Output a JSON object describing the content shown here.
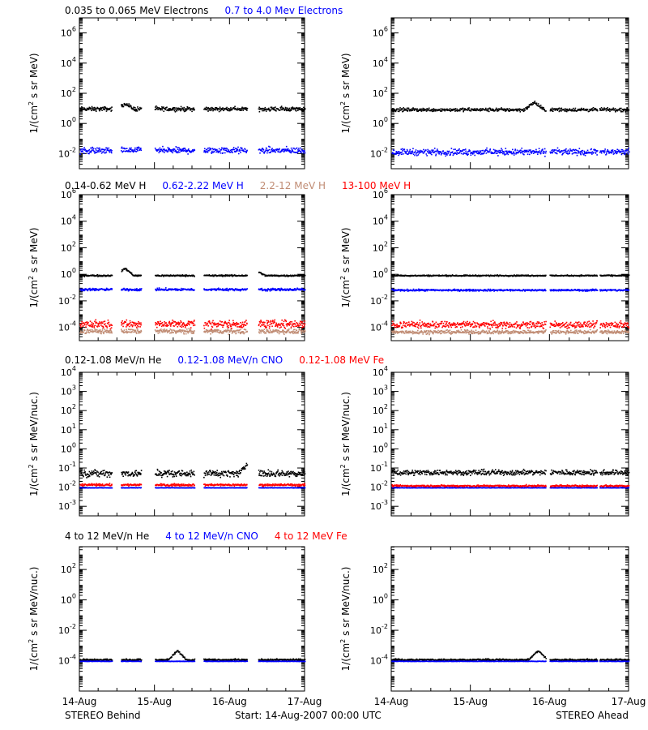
{
  "colors": {
    "black": "#000000",
    "blue": "#0000ff",
    "tan": "#c08c74",
    "red": "#ff0000"
  },
  "footer": {
    "left": "STEREO Behind",
    "center": "Start: 14-Aug-2007 00:00 UTC",
    "right": "STEREO Ahead"
  },
  "x_tick_labels": [
    "14-Aug",
    "15-Aug",
    "16-Aug",
    "17-Aug"
  ],
  "chart_data": [
    {
      "type": "scatter",
      "panel": "electrons-behind",
      "header": [
        "0.035 to 0.065 MeV Electrons",
        "0.7 to 4.0 Mev Electrons"
      ],
      "header_colors": [
        "#000000",
        "#0000ff"
      ],
      "ylabel_base": "1/(cm",
      "ylabel_sup": "2",
      "ylabel_rest": " s sr MeV)",
      "y_scale": "log",
      "ylim_exp": [
        -3,
        7
      ],
      "y_ticks": [
        {
          "base": "10",
          "exp": "-2",
          "e": -2
        },
        {
          "base": "10",
          "exp": "0",
          "e": 0
        },
        {
          "base": "10",
          "exp": "2",
          "e": 2
        },
        {
          "base": "10",
          "exp": "4",
          "e": 4
        },
        {
          "base": "10",
          "exp": "6",
          "e": 6
        }
      ],
      "x_days": [
        0,
        3
      ],
      "gaps": [
        [
          0.43,
          0.55
        ],
        [
          0.82,
          1.0
        ],
        [
          1.53,
          1.65
        ],
        [
          2.23,
          2.38
        ]
      ],
      "series": [
        {
          "color": "#000000",
          "level": 1.0,
          "scatter": 0.12,
          "events": [
            [
              0.6,
              0.35
            ]
          ]
        },
        {
          "color": "#0000ff",
          "level": -1.75,
          "scatter": 0.18,
          "events": []
        }
      ]
    },
    {
      "type": "scatter",
      "panel": "electrons-ahead",
      "ylabel_base": "1/(cm",
      "ylabel_sup": "2",
      "ylabel_rest": " s sr MeV)",
      "y_scale": "log",
      "ylim_exp": [
        -3,
        7
      ],
      "y_ticks": [
        {
          "base": "10",
          "exp": "-2",
          "e": -2
        },
        {
          "base": "10",
          "exp": "0",
          "e": 0
        },
        {
          "base": "10",
          "exp": "2",
          "e": 2
        },
        {
          "base": "10",
          "exp": "4",
          "e": 4
        },
        {
          "base": "10",
          "exp": "6",
          "e": 6
        }
      ],
      "x_days": [
        0,
        3
      ],
      "gaps": [
        [
          1.95,
          2.0
        ],
        [
          2.6,
          2.63
        ]
      ],
      "series": [
        {
          "color": "#000000",
          "level": 0.95,
          "scatter": 0.1,
          "events": [
            [
              1.8,
              0.5
            ]
          ]
        },
        {
          "color": "#0000ff",
          "level": -1.85,
          "scatter": 0.18,
          "events": []
        }
      ]
    },
    {
      "type": "scatter",
      "panel": "protons-behind",
      "header": [
        "0.14-0.62 MeV H",
        "0.62-2.22 MeV H",
        "2.2-12 MeV H",
        "13-100 MeV H"
      ],
      "header_colors": [
        "#000000",
        "#0000ff",
        "#c08c74",
        "#ff0000"
      ],
      "ylabel_base": "1/(cm",
      "ylabel_sup": "2",
      "ylabel_rest": " s sr MeV)",
      "y_scale": "log",
      "ylim_exp": [
        -5,
        6
      ],
      "y_ticks": [
        {
          "base": "10",
          "exp": "-4",
          "e": -4
        },
        {
          "base": "10",
          "exp": "-2",
          "e": -2
        },
        {
          "base": "10",
          "exp": "0",
          "e": 0
        },
        {
          "base": "10",
          "exp": "2",
          "e": 2
        },
        {
          "base": "10",
          "exp": "4",
          "e": 4
        },
        {
          "base": "10",
          "exp": "6",
          "e": 6
        }
      ],
      "x_days": [
        0,
        3
      ],
      "gaps": [
        [
          0.43,
          0.55
        ],
        [
          0.82,
          1.0
        ],
        [
          1.53,
          1.65
        ],
        [
          2.23,
          2.38
        ]
      ],
      "series": [
        {
          "color": "#000000",
          "level": -0.05,
          "scatter": 0.05,
          "events": [
            [
              0.6,
              0.55
            ],
            [
              2.35,
              0.35
            ]
          ]
        },
        {
          "color": "#0000ff",
          "level": -1.1,
          "scatter": 0.08,
          "events": []
        },
        {
          "color": "#c08c74",
          "level": -4.25,
          "scatter": 0.15,
          "events": []
        },
        {
          "color": "#ff0000",
          "level": -3.7,
          "scatter": 0.25,
          "events": []
        }
      ]
    },
    {
      "type": "scatter",
      "panel": "protons-ahead",
      "ylabel_base": "1/(cm",
      "ylabel_sup": "2",
      "ylabel_rest": " s sr MeV)",
      "y_scale": "log",
      "ylim_exp": [
        -5,
        6
      ],
      "y_ticks": [
        {
          "base": "10",
          "exp": "-4",
          "e": -4
        },
        {
          "base": "10",
          "exp": "-2",
          "e": -2
        },
        {
          "base": "10",
          "exp": "0",
          "e": 0
        },
        {
          "base": "10",
          "exp": "2",
          "e": 2
        },
        {
          "base": "10",
          "exp": "4",
          "e": 4
        },
        {
          "base": "10",
          "exp": "6",
          "e": 6
        }
      ],
      "x_days": [
        0,
        3
      ],
      "gaps": [
        [
          1.95,
          2.0
        ],
        [
          2.6,
          2.63
        ]
      ],
      "series": [
        {
          "color": "#000000",
          "level": -0.05,
          "scatter": 0.04,
          "events": []
        },
        {
          "color": "#0000ff",
          "level": -1.15,
          "scatter": 0.06,
          "events": []
        },
        {
          "color": "#c08c74",
          "level": -4.3,
          "scatter": 0.12,
          "events": []
        },
        {
          "color": "#ff0000",
          "level": -3.75,
          "scatter": 0.22,
          "events": []
        }
      ]
    },
    {
      "type": "scatter",
      "panel": "heavy-low-behind",
      "header": [
        "0.12-1.08 MeV/n He",
        "0.12-1.08 MeV/n CNO",
        "0.12-1.08 MeV Fe"
      ],
      "header_colors": [
        "#000000",
        "#0000ff",
        "#ff0000"
      ],
      "ylabel_base": "1/(cm",
      "ylabel_sup": "2",
      "ylabel_rest": " s sr MeV/nuc.)",
      "y_scale": "log",
      "ylim_exp": [
        -3.5,
        4
      ],
      "y_ticks": [
        {
          "base": "10",
          "exp": "-3",
          "e": -3
        },
        {
          "base": "10",
          "exp": "-2",
          "e": -2
        },
        {
          "base": "10",
          "exp": "-1",
          "e": -1
        },
        {
          "base": "10",
          "exp": "0",
          "e": 0
        },
        {
          "base": "10",
          "exp": "1",
          "e": 1
        },
        {
          "base": "10",
          "exp": "2",
          "e": 2
        },
        {
          "base": "10",
          "exp": "3",
          "e": 3
        },
        {
          "base": "10",
          "exp": "4",
          "e": 4
        }
      ],
      "x_days": [
        0,
        3
      ],
      "gaps": [
        [
          0.43,
          0.55
        ],
        [
          0.82,
          1.0
        ],
        [
          1.53,
          1.65
        ],
        [
          2.23,
          2.38
        ]
      ],
      "series": [
        {
          "color": "#000000",
          "level": -1.25,
          "scatter": 0.15,
          "events": [
            [
              2.25,
              0.6
            ]
          ]
        },
        {
          "color": "#0000ff",
          "level": -2.0,
          "scatter": 0.01,
          "events": []
        },
        {
          "color": "#ff0000",
          "level": -1.85,
          "scatter": 0.05,
          "events": []
        }
      ]
    },
    {
      "type": "scatter",
      "panel": "heavy-low-ahead",
      "ylabel_base": "1/(cm",
      "ylabel_sup": "2",
      "ylabel_rest": " s sr MeV/nuc.)",
      "y_scale": "log",
      "ylim_exp": [
        -3.5,
        4
      ],
      "y_ticks": [
        {
          "base": "10",
          "exp": "-3",
          "e": -3
        },
        {
          "base": "10",
          "exp": "-2",
          "e": -2
        },
        {
          "base": "10",
          "exp": "-1",
          "e": -1
        },
        {
          "base": "10",
          "exp": "0",
          "e": 0
        },
        {
          "base": "10",
          "exp": "1",
          "e": 1
        },
        {
          "base": "10",
          "exp": "2",
          "e": 2
        },
        {
          "base": "10",
          "exp": "3",
          "e": 3
        },
        {
          "base": "10",
          "exp": "4",
          "e": 4
        }
      ],
      "x_days": [
        0,
        3
      ],
      "gaps": [
        [
          1.95,
          2.0
        ],
        [
          2.6,
          2.63
        ]
      ],
      "series": [
        {
          "color": "#000000",
          "level": -1.2,
          "scatter": 0.12,
          "events": []
        },
        {
          "color": "#0000ff",
          "level": -2.0,
          "scatter": 0.01,
          "events": []
        },
        {
          "color": "#ff0000",
          "level": -1.9,
          "scatter": 0.04,
          "events": []
        }
      ]
    },
    {
      "type": "scatter",
      "panel": "heavy-high-behind",
      "header": [
        "4 to 12 MeV/n He",
        "4 to 12 MeV/n CNO",
        "4 to 12 MeV Fe"
      ],
      "header_colors": [
        "#000000",
        "#0000ff",
        "#ff0000"
      ],
      "ylabel_base": "1/(cm",
      "ylabel_sup": "2",
      "ylabel_rest": " s sr MeV/nuc.)",
      "y_scale": "log",
      "ylim_exp": [
        -6,
        3.5
      ],
      "y_ticks": [
        {
          "base": "10",
          "exp": "-4",
          "e": -4
        },
        {
          "base": "10",
          "exp": "-2",
          "e": -2
        },
        {
          "base": "10",
          "exp": "0",
          "e": 0
        },
        {
          "base": "10",
          "exp": "2",
          "e": 2
        }
      ],
      "x_days": [
        0,
        3
      ],
      "gaps": [
        [
          0.43,
          0.55
        ],
        [
          0.82,
          1.0
        ],
        [
          1.53,
          1.65
        ],
        [
          2.23,
          2.38
        ]
      ],
      "series": [
        {
          "color": "#000000",
          "level": -3.9,
          "scatter": 0.05,
          "events": [
            [
              1.3,
              0.6
            ]
          ]
        },
        {
          "color": "#0000ff",
          "level": -4.0,
          "scatter": 0.01,
          "events": []
        }
      ]
    },
    {
      "type": "scatter",
      "panel": "heavy-high-ahead",
      "ylabel_base": "1/(cm",
      "ylabel_sup": "2",
      "ylabel_rest": " s sr MeV/nuc.)",
      "y_scale": "log",
      "ylim_exp": [
        -6,
        3.5
      ],
      "y_ticks": [
        {
          "base": "10",
          "exp": "-4",
          "e": -4
        },
        {
          "base": "10",
          "exp": "-2",
          "e": -2
        },
        {
          "base": "10",
          "exp": "0",
          "e": 0
        },
        {
          "base": "10",
          "exp": "2",
          "e": 2
        }
      ],
      "x_days": [
        0,
        3
      ],
      "gaps": [
        [
          1.95,
          2.0
        ],
        [
          2.6,
          2.63
        ]
      ],
      "series": [
        {
          "color": "#000000",
          "level": -3.9,
          "scatter": 0.05,
          "events": [
            [
              1.85,
              0.6
            ]
          ]
        },
        {
          "color": "#0000ff",
          "level": -4.0,
          "scatter": 0.01,
          "events": []
        }
      ]
    }
  ]
}
